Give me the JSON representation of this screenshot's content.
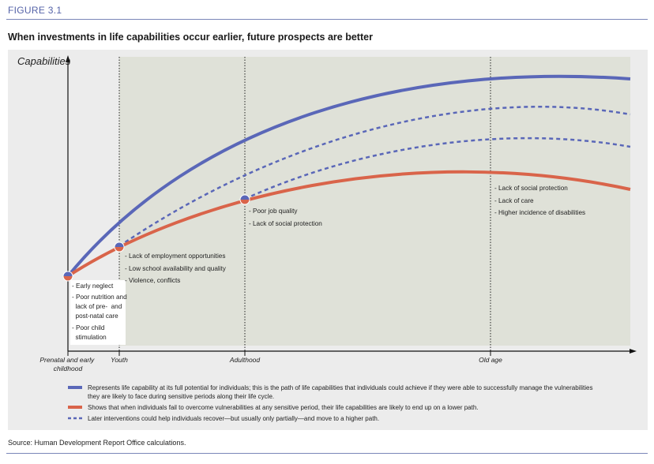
{
  "figure_label": "FIGURE 3.1",
  "title": "When investments in life capabilities occur earlier, future prospects are better",
  "y_axis_label": "Capabilities",
  "stages": [
    {
      "id": "prenatal",
      "label": [
        "Prenatal and early",
        "childhood"
      ]
    },
    {
      "id": "youth",
      "label": [
        "Youth"
      ]
    },
    {
      "id": "adulthood",
      "label": [
        "Adulthood"
      ]
    },
    {
      "id": "oldage",
      "label": [
        "Old age"
      ]
    }
  ],
  "vulnerabilities": {
    "prenatal": [
      "- Early neglect",
      "- Poor nutrition and",
      "  lack of pre-  and",
      "  post-natal care",
      "- Poor child",
      "  stimulation"
    ],
    "youth": [
      "- Lack of employment opportunities",
      "- Low school availability and quality",
      "- Violence, conflicts"
    ],
    "adulthood": [
      "- Poor job quality",
      "- Lack of social protection"
    ],
    "oldage": [
      "- Lack of social protection",
      "- Lack of care",
      "- Higher incidence of disabilities"
    ]
  },
  "legend": [
    {
      "style": "solid",
      "color": "#5a67b8",
      "text": [
        "Represents life capability at its full potential for individuals; this is the path of life capabilities that individuals could achieve if they were able to successfully manage the vulnerabilities",
        "they are likely to face during sensitive periods along their life cycle."
      ]
    },
    {
      "style": "solid",
      "color": "#d9644a",
      "text": [
        "Shows that when individuals fail to overcome vulnerabilities at any sensitive period, their life capabilities are likely to end up on a lower path."
      ]
    },
    {
      "style": "dotted",
      "color": "#5a67b8",
      "text": [
        "Later interventions could help individuals recover—but usually only partially—and move to a higher path."
      ]
    }
  ],
  "source": "Source: Human Development Report Office calculations.",
  "colors": {
    "full_potential": "#5a67b8",
    "lower_path": "#d9644a",
    "recovery": "#5a67b8",
    "panel": "#ececec",
    "shaded": "#dfe1d8"
  }
}
